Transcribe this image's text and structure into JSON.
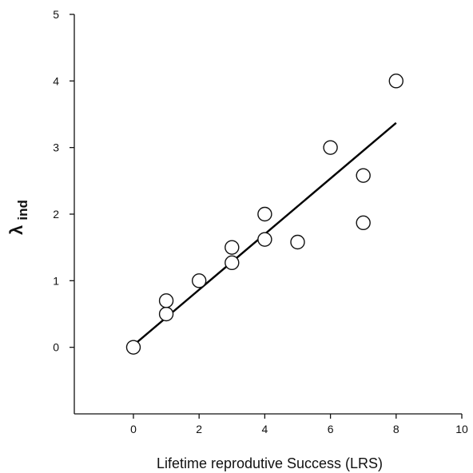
{
  "chart_data": {
    "type": "scatter",
    "title": "",
    "xlabel": "Lifetime reprodutive Success (LRS)",
    "ylabel": {
      "symbol": "λ",
      "subscript": "ind"
    },
    "xlim": [
      -1.8,
      10
    ],
    "ylim": [
      -1,
      5
    ],
    "x_ticks": [
      0,
      2,
      4,
      6,
      8,
      10
    ],
    "y_ticks": [
      0,
      1,
      2,
      3,
      4,
      5
    ],
    "grid": false,
    "legend": "none",
    "points": [
      {
        "x": 0,
        "y": 0
      },
      {
        "x": 1,
        "y": 0.5
      },
      {
        "x": 1,
        "y": 0.7
      },
      {
        "x": 2,
        "y": 1.0
      },
      {
        "x": 3,
        "y": 1.27
      },
      {
        "x": 3,
        "y": 1.5
      },
      {
        "x": 4,
        "y": 1.62
      },
      {
        "x": 4,
        "y": 2.0
      },
      {
        "x": 5,
        "y": 1.58
      },
      {
        "x": 6,
        "y": 3.0
      },
      {
        "x": 7,
        "y": 2.58
      },
      {
        "x": 7,
        "y": 1.87
      },
      {
        "x": 8,
        "y": 4.0
      }
    ],
    "fit_line": {
      "x": [
        0,
        8
      ],
      "y": [
        0.03,
        3.37
      ]
    },
    "colors": {
      "marker_edge": "#111111",
      "marker_fill": "#ffffff",
      "line": "#000000",
      "axis": "#111111"
    }
  }
}
